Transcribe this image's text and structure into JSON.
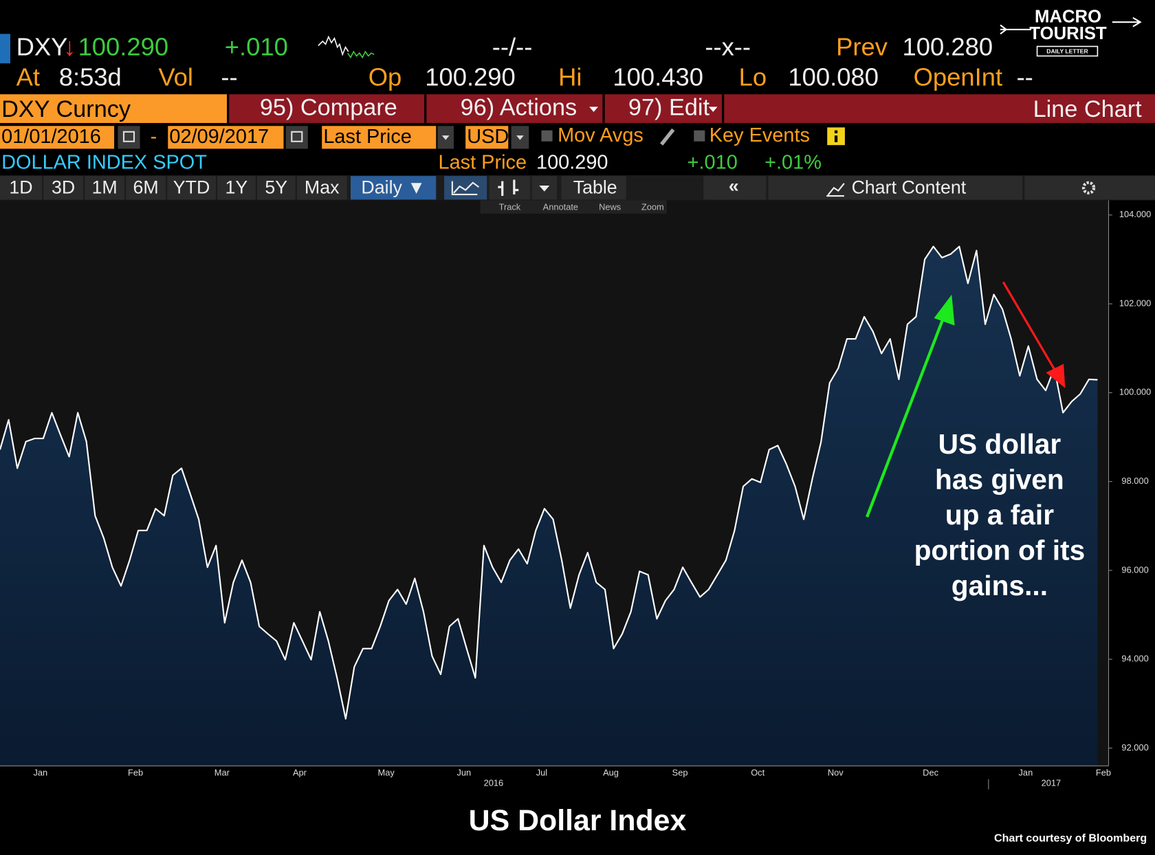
{
  "quote": {
    "ticker": "DXY",
    "arrow": "↓",
    "last": "100.290",
    "change": "+.010",
    "bid_ask": "--/--",
    "size": "--x--",
    "prev_label": "Prev",
    "prev": "100.280"
  },
  "stats": {
    "at_label": "At",
    "time": "8:53d",
    "vol_label": "Vol",
    "vol": "--",
    "open_label": "Op",
    "open": "100.290",
    "high_label": "Hi",
    "high": "100.430",
    "low_label": "Lo",
    "low": "100.080",
    "oi_label": "OpenInt",
    "oi": "--"
  },
  "logo": {
    "line1": "MACRO",
    "line2": "TOURIST",
    "tagline": "DAILY LETTER"
  },
  "menu": {
    "security": "DXY Curncy",
    "compare": "95) Compare",
    "actions": "96) Actions",
    "edit": "97) Edit",
    "view": "Line Chart"
  },
  "controls": {
    "start_date": "01/01/2016",
    "separator": "-",
    "end_date": "02/09/2017",
    "field": "Last Price",
    "currency": "USD",
    "mov_avgs": "Mov Avgs",
    "key_events": "Key Events"
  },
  "security_line": {
    "name": "DOLLAR INDEX SPOT",
    "field": "Last Price",
    "value": "100.290",
    "change": "+.010",
    "pct_change": "+.01%"
  },
  "toolbar": {
    "periods": [
      "1D",
      "3D",
      "1M",
      "6M",
      "YTD",
      "1Y",
      "5Y",
      "Max"
    ],
    "frequency": "Daily ▼",
    "table": "Table",
    "collapse": "«",
    "chart_content": "Chart Content"
  },
  "chart_tools": [
    "Track",
    "Annotate",
    "News",
    "Zoom"
  ],
  "chart_data": {
    "type": "area",
    "title": "US Dollar Index",
    "source": "Chart courtesy of Bloomberg",
    "annotation": [
      "US dollar",
      "has given",
      "up a fair",
      "portion of its",
      "gains..."
    ],
    "years": [
      "2016",
      "2017"
    ],
    "categories": [
      null,
      null,
      null,
      null,
      "Jan",
      null,
      null,
      null,
      null,
      null,
      null,
      null,
      null,
      null,
      null,
      "Feb",
      null,
      null,
      null,
      null,
      null,
      null,
      null,
      null,
      null,
      "Mar",
      null,
      null,
      null,
      null,
      null,
      null,
      null,
      null,
      "Apr",
      null,
      null,
      null,
      null,
      null,
      null,
      null,
      null,
      null,
      "May",
      null,
      null,
      null,
      null,
      null,
      null,
      null,
      null,
      "Jun",
      null,
      null,
      null,
      null,
      null,
      null,
      null,
      null,
      "Jul",
      null,
      null,
      null,
      null,
      null,
      null,
      null,
      "Aug",
      null,
      null,
      null,
      null,
      null,
      null,
      null,
      "Sep",
      null,
      null,
      null,
      null,
      null,
      null,
      null,
      null,
      "Oct",
      null,
      null,
      null,
      null,
      null,
      null,
      null,
      null,
      "Nov",
      null,
      null,
      null,
      null,
      null,
      null,
      null,
      null,
      null,
      null,
      "Dec",
      null,
      null,
      null,
      null,
      null,
      null,
      null,
      null,
      null,
      null,
      "Jan",
      null,
      null,
      null,
      null,
      null,
      null,
      null,
      null,
      "Feb"
    ],
    "values": [
      98.72,
      99.39,
      98.3,
      98.9,
      98.97,
      98.97,
      99.55,
      99.05,
      98.56,
      99.55,
      98.9,
      97.23,
      96.73,
      96.07,
      95.65,
      96.23,
      96.9,
      96.9,
      97.39,
      97.23,
      98.14,
      98.3,
      97.73,
      97.15,
      96.07,
      96.56,
      94.82,
      95.73,
      96.23,
      95.73,
      94.74,
      94.57,
      94.41,
      93.99,
      94.82,
      94.41,
      93.99,
      95.07,
      94.41,
      93.58,
      92.66,
      93.83,
      94.24,
      94.24,
      94.74,
      95.32,
      95.57,
      95.24,
      95.82,
      95.07,
      94.07,
      93.66,
      94.74,
      94.91,
      94.24,
      93.58,
      96.56,
      96.07,
      95.73,
      96.23,
      96.48,
      96.15,
      96.9,
      97.39,
      97.15,
      96.23,
      95.15,
      95.9,
      96.4,
      95.73,
      95.57,
      94.24,
      94.57,
      95.07,
      95.98,
      95.9,
      94.91,
      95.32,
      95.57,
      96.07,
      95.73,
      95.4,
      95.57,
      95.9,
      96.23,
      96.9,
      97.89,
      98.06,
      97.98,
      98.72,
      98.81,
      98.39,
      97.89,
      97.15,
      98.06,
      98.89,
      100.22,
      100.55,
      101.21,
      101.21,
      101.71,
      101.38,
      100.88,
      101.21,
      100.3,
      101.54,
      101.71,
      103.0,
      103.29,
      103.04,
      103.12,
      103.29,
      102.46,
      103.2,
      101.54,
      102.21,
      101.88,
      101.21,
      100.38,
      101.05,
      100.3,
      100.05,
      100.55,
      99.55,
      99.8,
      99.97,
      100.3,
      100.29
    ],
    "line_color": "#ffffff",
    "fill_colors": [
      "#16314f",
      "#0a1b31"
    ],
    "ylim": [
      91.6,
      104.33
    ],
    "yticks": [
      {
        "value": 92,
        "label": "92.000"
      },
      {
        "value": 94,
        "label": "94.000"
      },
      {
        "value": 96,
        "label": "96.000"
      },
      {
        "value": 98,
        "label": "98.000"
      },
      {
        "value": 100,
        "label": "100.000"
      },
      {
        "value": 102,
        "label": "102.000"
      },
      {
        "value": 104,
        "label": "104.000"
      }
    ],
    "grid": false
  }
}
